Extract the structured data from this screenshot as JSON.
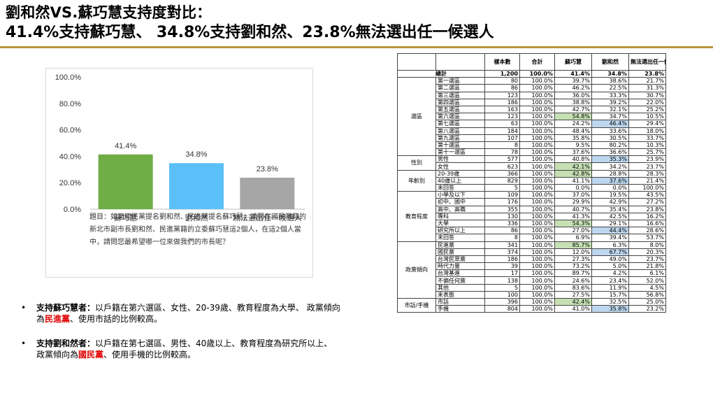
{
  "title": {
    "line1": "劉和然VS.蘇巧慧支持度對比：",
    "line2": "41.4%支持蘇巧慧、 34.8%支持劉和然、23.8%無法選出任一候選人"
  },
  "chart_data": {
    "type": "bar",
    "categories": [
      "蘇巧慧",
      "劉和然",
      "無法選出任一候選人"
    ],
    "values": [
      41.4,
      34.8,
      23.8
    ],
    "value_labels": [
      "41.4%",
      "34.8%",
      "23.8%"
    ],
    "colors": [
      "#70ad47",
      "#5bc0f8",
      "#a6a6a6"
    ],
    "ylim": [
      0,
      100
    ],
    "yticks": [
      "0.0%",
      "20.0%",
      "40.0%",
      "60.0%",
      "80.0%",
      "100.0%"
    ],
    "grid": false,
    "note": "題目：如果國民黨提名劉和然、民進黨提名蘇巧慧，請問在國民黨籍的新北市副市長劉和然、民進黨籍的立委蘇巧慧這2個人，在這2個人當中，請問您最希望哪一位來做我們的市長呢？"
  },
  "bullets": [
    {
      "lead": "支持蘇巧慧者：",
      "text1": "以戶籍在第六選區、女性、20-39歲、教育程度為大學、 政黨傾向為",
      "party": "民進黨",
      "text2": "、使用市話的比例較高。"
    },
    {
      "lead": "支持劉和然者：",
      "text1": "以戶籍在第七選區、男性、40歲以上、教育程度為研究所以上、 政黨傾向為",
      "party": "國民黨",
      "text2": "、使用手機的比例較高。"
    }
  ],
  "table": {
    "headers": [
      "",
      "",
      "樣本數",
      "合計",
      "蘇巧慧",
      "劉和然",
      "無法選出任一候選人"
    ],
    "total": {
      "label": "總計",
      "n": "1,200",
      "sum": "100.0%",
      "a": "41.4%",
      "b": "34.8%",
      "c": "23.8%"
    },
    "groups": [
      {
        "name": "選區",
        "rows": [
          {
            "label": "第一選區",
            "n": "80",
            "sum": "100.0%",
            "a": "39.7%",
            "b": "38.6%",
            "c": "21.7%",
            "hl": ""
          },
          {
            "label": "第二選區",
            "n": "86",
            "sum": "100.0%",
            "a": "46.2%",
            "b": "22.5%",
            "c": "31.3%",
            "hl": ""
          },
          {
            "label": "第三選區",
            "n": "123",
            "sum": "100.0%",
            "a": "36.0%",
            "b": "33.3%",
            "c": "30.7%",
            "hl": ""
          },
          {
            "label": "第四選區",
            "n": "186",
            "sum": "100.0%",
            "a": "38.8%",
            "b": "39.2%",
            "c": "22.0%",
            "hl": ""
          },
          {
            "label": "第五選區",
            "n": "163",
            "sum": "100.0%",
            "a": "42.7%",
            "b": "32.1%",
            "c": "25.2%",
            "hl": ""
          },
          {
            "label": "第六選區",
            "n": "123",
            "sum": "100.0%",
            "a": "54.8%",
            "b": "34.7%",
            "c": "10.5%",
            "hl": "a"
          },
          {
            "label": "第七選區",
            "n": "63",
            "sum": "100.0%",
            "a": "24.2%",
            "b": "46.4%",
            "c": "29.4%",
            "hl": "b"
          },
          {
            "label": "第八選區",
            "n": "184",
            "sum": "100.0%",
            "a": "48.4%",
            "b": "33.6%",
            "c": "18.0%",
            "hl": ""
          },
          {
            "label": "第九選區",
            "n": "107",
            "sum": "100.0%",
            "a": "35.8%",
            "b": "30.5%",
            "c": "33.7%",
            "hl": ""
          },
          {
            "label": "第十選區",
            "n": "8",
            "sum": "100.0%",
            "a": "9.5%",
            "b": "80.2%",
            "c": "10.3%",
            "hl": ""
          },
          {
            "label": "第十一選區",
            "n": "78",
            "sum": "100.0%",
            "a": "37.6%",
            "b": "36.6%",
            "c": "25.7%",
            "hl": ""
          }
        ]
      },
      {
        "name": "性別",
        "rows": [
          {
            "label": "男性",
            "n": "577",
            "sum": "100.0%",
            "a": "40.8%",
            "b": "35.3%",
            "c": "23.9%",
            "hl": "b"
          },
          {
            "label": "女性",
            "n": "623",
            "sum": "100.0%",
            "a": "42.1%",
            "b": "34.2%",
            "c": "23.7%",
            "hl": "a"
          }
        ]
      },
      {
        "name": "年齡別",
        "rows": [
          {
            "label": "20-39歲",
            "n": "366",
            "sum": "100.0%",
            "a": "42.8%",
            "b": "28.8%",
            "c": "28.3%",
            "hl": "a"
          },
          {
            "label": "40歲以上",
            "n": "829",
            "sum": "100.0%",
            "a": "41.1%",
            "b": "37.6%",
            "c": "21.4%",
            "hl": "b"
          },
          {
            "label": "未回答",
            "n": "5",
            "sum": "100.0%",
            "a": "0.0%",
            "b": "0.0%",
            "c": "100.0%",
            "hl": ""
          }
        ]
      },
      {
        "name": "教育程度",
        "rows": [
          {
            "label": "小學及以下",
            "n": "109",
            "sum": "100.0%",
            "a": "37.0%",
            "b": "19.5%",
            "c": "43.5%",
            "hl": ""
          },
          {
            "label": "初中、國中",
            "n": "176",
            "sum": "100.0%",
            "a": "29.9%",
            "b": "42.9%",
            "c": "27.2%",
            "hl": ""
          },
          {
            "label": "高中、高職",
            "n": "355",
            "sum": "100.0%",
            "a": "40.7%",
            "b": "35.4%",
            "c": "23.8%",
            "hl": ""
          },
          {
            "label": "專科",
            "n": "130",
            "sum": "100.0%",
            "a": "41.3%",
            "b": "42.5%",
            "c": "16.2%",
            "hl": ""
          },
          {
            "label": "大學",
            "n": "336",
            "sum": "100.0%",
            "a": "54.3%",
            "b": "29.1%",
            "c": "16.6%",
            "hl": "a"
          },
          {
            "label": "研究所以上",
            "n": "86",
            "sum": "100.0%",
            "a": "27.0%",
            "b": "44.4%",
            "c": "28.6%",
            "hl": "b"
          },
          {
            "label": "未回答",
            "n": "8",
            "sum": "100.0%",
            "a": "6.9%",
            "b": "39.4%",
            "c": "53.7%",
            "hl": ""
          }
        ]
      },
      {
        "name": "政黨傾向",
        "rows": [
          {
            "label": "民進黨",
            "n": "341",
            "sum": "100.0%",
            "a": "85.7%",
            "b": "6.3%",
            "c": "8.0%",
            "hl": "a"
          },
          {
            "label": "國民黨",
            "n": "374",
            "sum": "100.0%",
            "a": "12.0%",
            "b": "67.7%",
            "c": "20.3%",
            "hl": "b"
          },
          {
            "label": "台灣民眾黨",
            "n": "186",
            "sum": "100.0%",
            "a": "27.3%",
            "b": "49.0%",
            "c": "23.7%",
            "hl": ""
          },
          {
            "label": "時代力量",
            "n": "39",
            "sum": "100.0%",
            "a": "73.2%",
            "b": "5.0%",
            "c": "21.8%",
            "hl": ""
          },
          {
            "label": "台灣基進",
            "n": "17",
            "sum": "100.0%",
            "a": "89.7%",
            "b": "4.2%",
            "c": "6.1%",
            "hl": ""
          },
          {
            "label": "不偏任何黨",
            "n": "138",
            "sum": "100.0%",
            "a": "24.6%",
            "b": "23.4%",
            "c": "52.0%",
            "hl": ""
          },
          {
            "label": "其他",
            "n": "5",
            "sum": "100.0%",
            "a": "83.6%",
            "b": "11.9%",
            "c": "4.5%",
            "hl": ""
          },
          {
            "label": "未表態",
            "n": "100",
            "sum": "100.0%",
            "a": "27.5%",
            "b": "15.7%",
            "c": "56.8%",
            "hl": ""
          }
        ]
      },
      {
        "name": "市話/手機",
        "rows": [
          {
            "label": "市話",
            "n": "396",
            "sum": "100.0%",
            "a": "42.4%",
            "b": "32.5%",
            "c": "25.0%",
            "hl": "a"
          },
          {
            "label": "手機",
            "n": "804",
            "sum": "100.0%",
            "a": "41.0%",
            "b": "35.8%",
            "c": "23.2%",
            "hl": "b"
          }
        ]
      }
    ]
  }
}
